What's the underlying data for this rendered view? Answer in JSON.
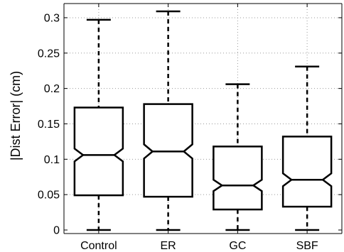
{
  "chart_data": {
    "type": "boxplot",
    "notched": true,
    "ylabel": "|Dist Error| (cm)",
    "xlabel": "",
    "ylim": [
      -0.005,
      0.32
    ],
    "yticks": [
      0,
      0.05,
      0.1,
      0.15,
      0.2,
      0.25,
      0.3
    ],
    "ytick_labels": [
      "0",
      "0.05",
      "0.1",
      "0.15",
      "0.2",
      "0.25",
      "0.3"
    ],
    "grid": true,
    "categories": [
      "Control",
      "ER",
      "GC",
      "SBF"
    ],
    "boxes": [
      {
        "category": "Control",
        "whisker_low": 0.0,
        "q1": 0.049,
        "median": 0.106,
        "q3": 0.173,
        "whisker_high": 0.297,
        "notch_low": 0.097,
        "notch_high": 0.115
      },
      {
        "category": "ER",
        "whisker_low": 0.0,
        "q1": 0.047,
        "median": 0.111,
        "q3": 0.178,
        "whisker_high": 0.309,
        "notch_low": 0.101,
        "notch_high": 0.121
      },
      {
        "category": "GC",
        "whisker_low": 0.0,
        "q1": 0.029,
        "median": 0.063,
        "q3": 0.118,
        "whisker_high": 0.206,
        "notch_low": 0.055,
        "notch_high": 0.071
      },
      {
        "category": "SBF",
        "whisker_low": 0.0,
        "q1": 0.033,
        "median": 0.071,
        "q3": 0.132,
        "whisker_high": 0.231,
        "notch_low": 0.062,
        "notch_high": 0.08
      }
    ],
    "colors": {
      "box": "#000000",
      "grid": "#9a9a9a",
      "axis": "#000000"
    }
  }
}
